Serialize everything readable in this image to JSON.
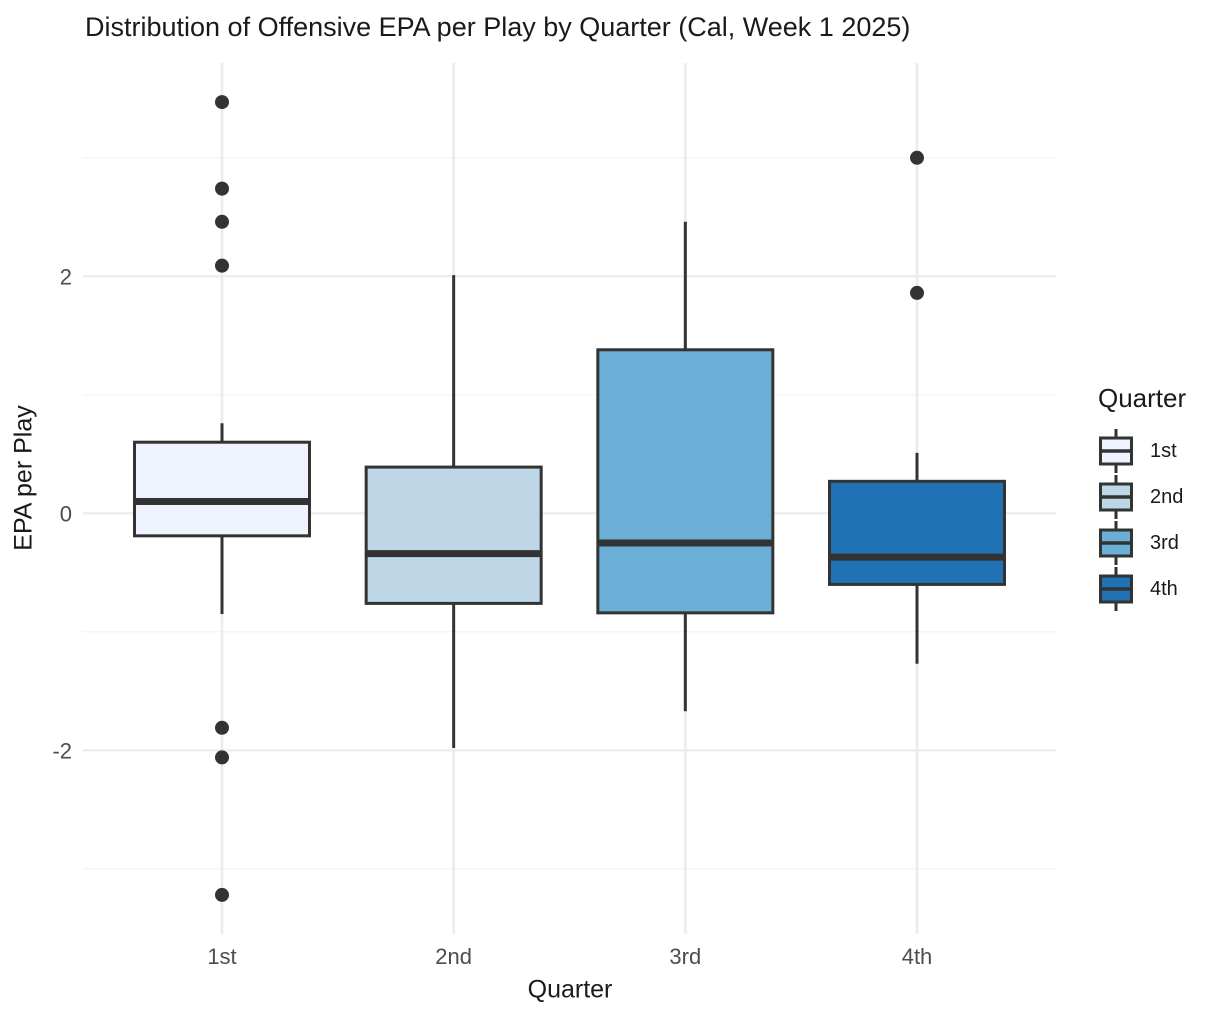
{
  "title": "Distribution of Offensive EPA per Play by Quarter (Cal, Week 1 2025)",
  "colors": {
    "background": "#ffffff",
    "grid_major": "#ebebeb",
    "grid_minor": "#f4f4f4",
    "box_border": "#333333",
    "outlier": "#333333",
    "axis_tick_text": "#4d4d4d",
    "text": "#1a1a1a",
    "palette_blues": [
      "#eff3ff",
      "#bdd7e7",
      "#6baed6",
      "#2171b5"
    ]
  },
  "chart_data": {
    "type": "boxplot",
    "title": "Distribution of Offensive EPA per Play by Quarter (Cal, Week 1 2025)",
    "xlabel": "Quarter",
    "ylabel": "EPA per Play",
    "categories": [
      "1st",
      "2nd",
      "3rd",
      "4th"
    ],
    "y_major_ticks": [
      -2,
      0,
      2
    ],
    "y_tick_labels": [
      "-2",
      "0",
      "2"
    ],
    "y_minor_ticks": [
      -3,
      -1,
      1,
      3
    ],
    "ylim": [
      -3.55,
      3.8
    ],
    "grid": true,
    "legend_position": "right",
    "series": [
      {
        "category": "1st",
        "color": "#eff3ff",
        "whisker_low": -0.85,
        "q1": -0.19,
        "median": 0.1,
        "q3": 0.6,
        "whisker_high": 0.76,
        "outliers": [
          3.47,
          2.74,
          2.46,
          2.09,
          -1.81,
          -2.06,
          -3.22
        ]
      },
      {
        "category": "2nd",
        "color": "#bdd7e7",
        "whisker_low": -1.98,
        "q1": -0.76,
        "median": -0.34,
        "q3": 0.39,
        "whisker_high": 2.01,
        "outliers": []
      },
      {
        "category": "3rd",
        "color": "#6baed6",
        "whisker_low": -1.67,
        "q1": -0.84,
        "median": -0.25,
        "q3": 1.38,
        "whisker_high": 2.46,
        "outliers": []
      },
      {
        "category": "4th",
        "color": "#2171b5",
        "whisker_low": -1.27,
        "q1": -0.6,
        "median": -0.37,
        "q3": 0.27,
        "whisker_high": 0.51,
        "outliers": [
          3.0,
          1.86
        ]
      }
    ],
    "legend": {
      "title": "Quarter",
      "entries": [
        {
          "label": "1st",
          "color": "#eff3ff"
        },
        {
          "label": "2nd",
          "color": "#bdd7e7"
        },
        {
          "label": "3rd",
          "color": "#6baed6"
        },
        {
          "label": "4th",
          "color": "#2171b5"
        }
      ]
    }
  }
}
